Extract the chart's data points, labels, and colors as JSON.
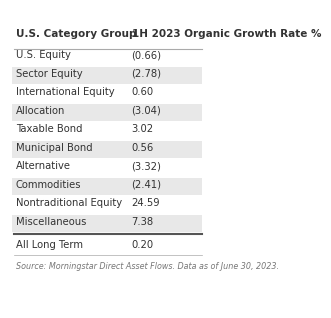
{
  "title_col1": "U.S. Category Group",
  "title_col2": "1H 2023 Organic Growth Rate %",
  "rows": [
    [
      "U.S. Equity",
      "(0.66)"
    ],
    [
      "Sector Equity",
      "(2.78)"
    ],
    [
      "International Equity",
      "0.60"
    ],
    [
      "Allocation",
      "(3.04)"
    ],
    [
      "Taxable Bond",
      "3.02"
    ],
    [
      "Municipal Bond",
      "0.56"
    ],
    [
      "Alternative",
      "(3.32)"
    ],
    [
      "Commodities",
      "(2.41)"
    ],
    [
      "Nontraditional Equity",
      "24.59"
    ],
    [
      "Miscellaneous",
      "7.38"
    ]
  ],
  "footer_row": [
    "All Long Term",
    "0.20"
  ],
  "source_text": "Source: Morningstar Direct Asset Flows. Data as of June 30, 2023.",
  "bg_color": "#ffffff",
  "stripe_color": "#e8e8e8",
  "text_color": "#333333",
  "header_fontsize": 7.5,
  "row_fontsize": 7.2,
  "source_fontsize": 5.8
}
